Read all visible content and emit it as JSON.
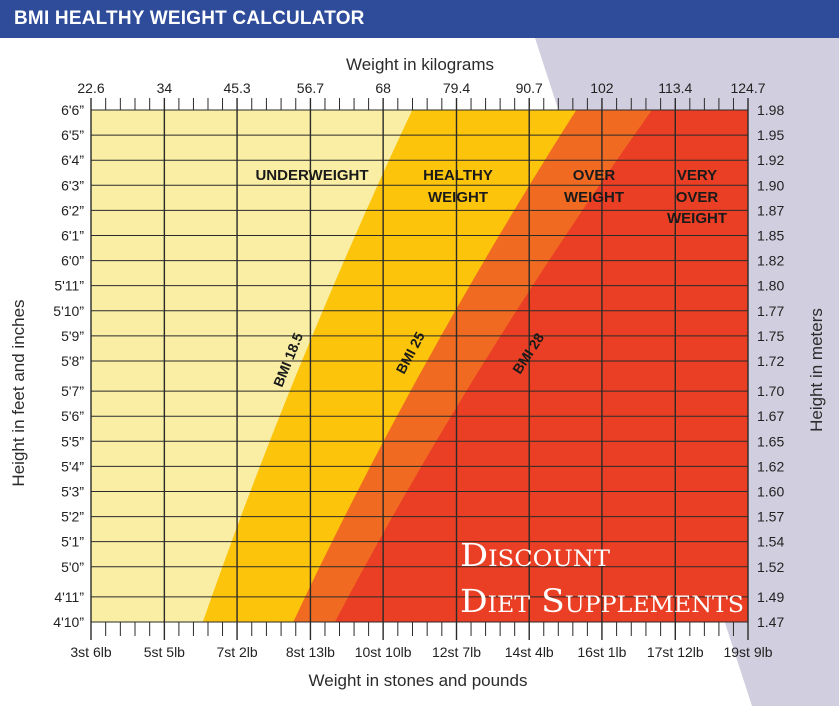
{
  "header": {
    "title": "BMI HEALTHY WEIGHT CALCULATOR"
  },
  "colors": {
    "header_bg": "#2f4c9b",
    "underweight": "#f9eea4",
    "healthy": "#fcc40a",
    "overweight": "#f06a22",
    "very_overweight": "#ea3f24",
    "side_panel": "#d1cfdf",
    "grid": "#2a2a2a",
    "text": "#222222"
  },
  "chart_data": {
    "type": "area",
    "title": "BMI HEALTHY WEIGHT CALCULATOR",
    "xlabel_top": "Weight in kilograms",
    "xlabel_bottom": "Weight in stones and pounds",
    "ylabel_left": "Height in feet and inches",
    "ylabel_right": "Height in meters",
    "xlim_kg": [
      22.6,
      124.7
    ],
    "ylim_m": [
      1.47,
      1.98
    ],
    "top_ticks": [
      {
        "kg": 22.6,
        "label": "22.6"
      },
      {
        "kg": 34,
        "label": "34"
      },
      {
        "kg": 45.3,
        "label": "45.3"
      },
      {
        "kg": 56.7,
        "label": "56.7"
      },
      {
        "kg": 68,
        "label": "68"
      },
      {
        "kg": 79.4,
        "label": "79.4"
      },
      {
        "kg": 90.7,
        "label": "90.7"
      },
      {
        "kg": 102,
        "label": "102"
      },
      {
        "kg": 113.4,
        "label": "113.4"
      },
      {
        "kg": 124.7,
        "label": "124.7"
      }
    ],
    "bottom_ticks": [
      {
        "kg": 22.6,
        "label": "3st 6lb"
      },
      {
        "kg": 34,
        "label": "5st 5lb"
      },
      {
        "kg": 45.3,
        "label": "7st 2lb"
      },
      {
        "kg": 56.7,
        "label": "8st 13lb"
      },
      {
        "kg": 68,
        "label": "10st 10lb"
      },
      {
        "kg": 79.4,
        "label": "12st 7lb"
      },
      {
        "kg": 90.7,
        "label": "14st 4lb"
      },
      {
        "kg": 102,
        "label": "16st 1lb"
      },
      {
        "kg": 113.4,
        "label": "17st 12lb"
      },
      {
        "kg": 124.7,
        "label": "19st 9lb"
      }
    ],
    "left_ticks": [
      {
        "m": 1.98,
        "label": "6'6”"
      },
      {
        "m": 1.955,
        "label": "6'5”"
      },
      {
        "m": 1.93,
        "label": "6'4”"
      },
      {
        "m": 1.905,
        "label": "6'3”"
      },
      {
        "m": 1.88,
        "label": "6'2”"
      },
      {
        "m": 1.855,
        "label": "6'1”"
      },
      {
        "m": 1.83,
        "label": "6'0”"
      },
      {
        "m": 1.805,
        "label": "5'11”"
      },
      {
        "m": 1.78,
        "label": "5'10”"
      },
      {
        "m": 1.755,
        "label": "5'9”"
      },
      {
        "m": 1.73,
        "label": "5'8”"
      },
      {
        "m": 1.7,
        "label": "5'7”"
      },
      {
        "m": 1.675,
        "label": "5'6”"
      },
      {
        "m": 1.65,
        "label": "5'5”"
      },
      {
        "m": 1.625,
        "label": "5'4”"
      },
      {
        "m": 1.6,
        "label": "5'3”"
      },
      {
        "m": 1.575,
        "label": "5'2”"
      },
      {
        "m": 1.55,
        "label": "5'1”"
      },
      {
        "m": 1.525,
        "label": "5'0”"
      },
      {
        "m": 1.495,
        "label": "4'11”"
      },
      {
        "m": 1.47,
        "label": "4'10”"
      }
    ],
    "right_ticks": [
      "1.98",
      "1.95",
      "1.92",
      "1.90",
      "1.87",
      "1.85",
      "1.82",
      "1.80",
      "1.77",
      "1.75",
      "1.72",
      "1.70",
      "1.67",
      "1.65",
      "1.62",
      "1.60",
      "1.57",
      "1.54",
      "1.52",
      "1.49",
      "1.47"
    ],
    "thresholds": [
      {
        "bmi": 18.5,
        "label": "BMI 18.5"
      },
      {
        "bmi": 25,
        "label": "BMI 25"
      },
      {
        "bmi": 28,
        "label": "BMI 28"
      }
    ],
    "zones": [
      {
        "name": "underweight",
        "lines": [
          "UNDERWEIGHT"
        ]
      },
      {
        "name": "healthy",
        "lines": [
          "HEALTHY",
          "WEIGHT"
        ]
      },
      {
        "name": "overweight",
        "lines": [
          "OVER",
          "WEIGHT"
        ]
      },
      {
        "name": "very_overweight",
        "lines": [
          "VERY",
          "OVER",
          "WEIGHT"
        ]
      }
    ]
  },
  "watermark": {
    "lines": [
      "Discount",
      "Diet Supplements"
    ]
  }
}
